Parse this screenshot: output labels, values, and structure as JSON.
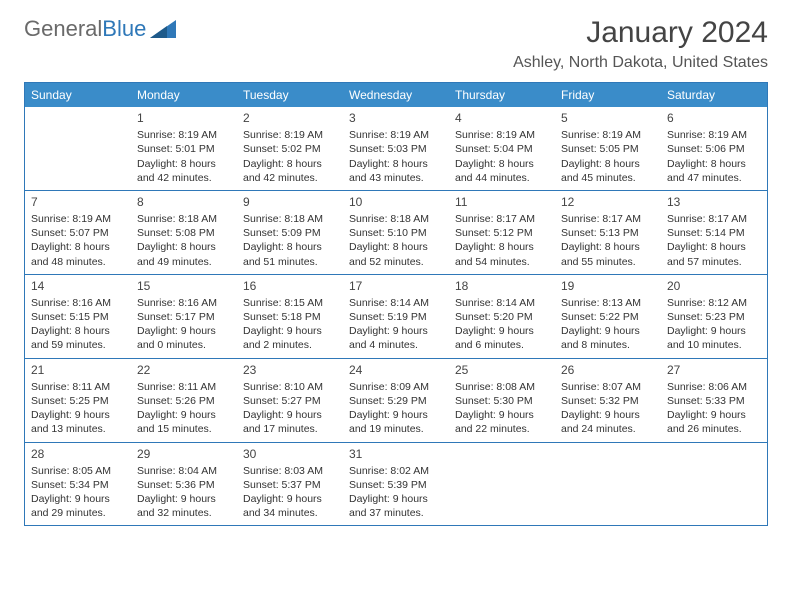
{
  "logo": {
    "text_gray": "General",
    "text_blue": "Blue"
  },
  "title": "January 2024",
  "location": "Ashley, North Dakota, United States",
  "header_bg": "#3a8cc9",
  "border_color": "#2f78b8",
  "days_of_week": [
    "Sunday",
    "Monday",
    "Tuesday",
    "Wednesday",
    "Thursday",
    "Friday",
    "Saturday"
  ],
  "weeks": [
    [
      null,
      {
        "n": "1",
        "sr": "Sunrise: 8:19 AM",
        "ss": "Sunset: 5:01 PM",
        "dl": "Daylight: 8 hours and 42 minutes."
      },
      {
        "n": "2",
        "sr": "Sunrise: 8:19 AM",
        "ss": "Sunset: 5:02 PM",
        "dl": "Daylight: 8 hours and 42 minutes."
      },
      {
        "n": "3",
        "sr": "Sunrise: 8:19 AM",
        "ss": "Sunset: 5:03 PM",
        "dl": "Daylight: 8 hours and 43 minutes."
      },
      {
        "n": "4",
        "sr": "Sunrise: 8:19 AM",
        "ss": "Sunset: 5:04 PM",
        "dl": "Daylight: 8 hours and 44 minutes."
      },
      {
        "n": "5",
        "sr": "Sunrise: 8:19 AM",
        "ss": "Sunset: 5:05 PM",
        "dl": "Daylight: 8 hours and 45 minutes."
      },
      {
        "n": "6",
        "sr": "Sunrise: 8:19 AM",
        "ss": "Sunset: 5:06 PM",
        "dl": "Daylight: 8 hours and 47 minutes."
      }
    ],
    [
      {
        "n": "7",
        "sr": "Sunrise: 8:19 AM",
        "ss": "Sunset: 5:07 PM",
        "dl": "Daylight: 8 hours and 48 minutes."
      },
      {
        "n": "8",
        "sr": "Sunrise: 8:18 AM",
        "ss": "Sunset: 5:08 PM",
        "dl": "Daylight: 8 hours and 49 minutes."
      },
      {
        "n": "9",
        "sr": "Sunrise: 8:18 AM",
        "ss": "Sunset: 5:09 PM",
        "dl": "Daylight: 8 hours and 51 minutes."
      },
      {
        "n": "10",
        "sr": "Sunrise: 8:18 AM",
        "ss": "Sunset: 5:10 PM",
        "dl": "Daylight: 8 hours and 52 minutes."
      },
      {
        "n": "11",
        "sr": "Sunrise: 8:17 AM",
        "ss": "Sunset: 5:12 PM",
        "dl": "Daylight: 8 hours and 54 minutes."
      },
      {
        "n": "12",
        "sr": "Sunrise: 8:17 AM",
        "ss": "Sunset: 5:13 PM",
        "dl": "Daylight: 8 hours and 55 minutes."
      },
      {
        "n": "13",
        "sr": "Sunrise: 8:17 AM",
        "ss": "Sunset: 5:14 PM",
        "dl": "Daylight: 8 hours and 57 minutes."
      }
    ],
    [
      {
        "n": "14",
        "sr": "Sunrise: 8:16 AM",
        "ss": "Sunset: 5:15 PM",
        "dl": "Daylight: 8 hours and 59 minutes."
      },
      {
        "n": "15",
        "sr": "Sunrise: 8:16 AM",
        "ss": "Sunset: 5:17 PM",
        "dl": "Daylight: 9 hours and 0 minutes."
      },
      {
        "n": "16",
        "sr": "Sunrise: 8:15 AM",
        "ss": "Sunset: 5:18 PM",
        "dl": "Daylight: 9 hours and 2 minutes."
      },
      {
        "n": "17",
        "sr": "Sunrise: 8:14 AM",
        "ss": "Sunset: 5:19 PM",
        "dl": "Daylight: 9 hours and 4 minutes."
      },
      {
        "n": "18",
        "sr": "Sunrise: 8:14 AM",
        "ss": "Sunset: 5:20 PM",
        "dl": "Daylight: 9 hours and 6 minutes."
      },
      {
        "n": "19",
        "sr": "Sunrise: 8:13 AM",
        "ss": "Sunset: 5:22 PM",
        "dl": "Daylight: 9 hours and 8 minutes."
      },
      {
        "n": "20",
        "sr": "Sunrise: 8:12 AM",
        "ss": "Sunset: 5:23 PM",
        "dl": "Daylight: 9 hours and 10 minutes."
      }
    ],
    [
      {
        "n": "21",
        "sr": "Sunrise: 8:11 AM",
        "ss": "Sunset: 5:25 PM",
        "dl": "Daylight: 9 hours and 13 minutes."
      },
      {
        "n": "22",
        "sr": "Sunrise: 8:11 AM",
        "ss": "Sunset: 5:26 PM",
        "dl": "Daylight: 9 hours and 15 minutes."
      },
      {
        "n": "23",
        "sr": "Sunrise: 8:10 AM",
        "ss": "Sunset: 5:27 PM",
        "dl": "Daylight: 9 hours and 17 minutes."
      },
      {
        "n": "24",
        "sr": "Sunrise: 8:09 AM",
        "ss": "Sunset: 5:29 PM",
        "dl": "Daylight: 9 hours and 19 minutes."
      },
      {
        "n": "25",
        "sr": "Sunrise: 8:08 AM",
        "ss": "Sunset: 5:30 PM",
        "dl": "Daylight: 9 hours and 22 minutes."
      },
      {
        "n": "26",
        "sr": "Sunrise: 8:07 AM",
        "ss": "Sunset: 5:32 PM",
        "dl": "Daylight: 9 hours and 24 minutes."
      },
      {
        "n": "27",
        "sr": "Sunrise: 8:06 AM",
        "ss": "Sunset: 5:33 PM",
        "dl": "Daylight: 9 hours and 26 minutes."
      }
    ],
    [
      {
        "n": "28",
        "sr": "Sunrise: 8:05 AM",
        "ss": "Sunset: 5:34 PM",
        "dl": "Daylight: 9 hours and 29 minutes."
      },
      {
        "n": "29",
        "sr": "Sunrise: 8:04 AM",
        "ss": "Sunset: 5:36 PM",
        "dl": "Daylight: 9 hours and 32 minutes."
      },
      {
        "n": "30",
        "sr": "Sunrise: 8:03 AM",
        "ss": "Sunset: 5:37 PM",
        "dl": "Daylight: 9 hours and 34 minutes."
      },
      {
        "n": "31",
        "sr": "Sunrise: 8:02 AM",
        "ss": "Sunset: 5:39 PM",
        "dl": "Daylight: 9 hours and 37 minutes."
      },
      null,
      null,
      null
    ]
  ]
}
